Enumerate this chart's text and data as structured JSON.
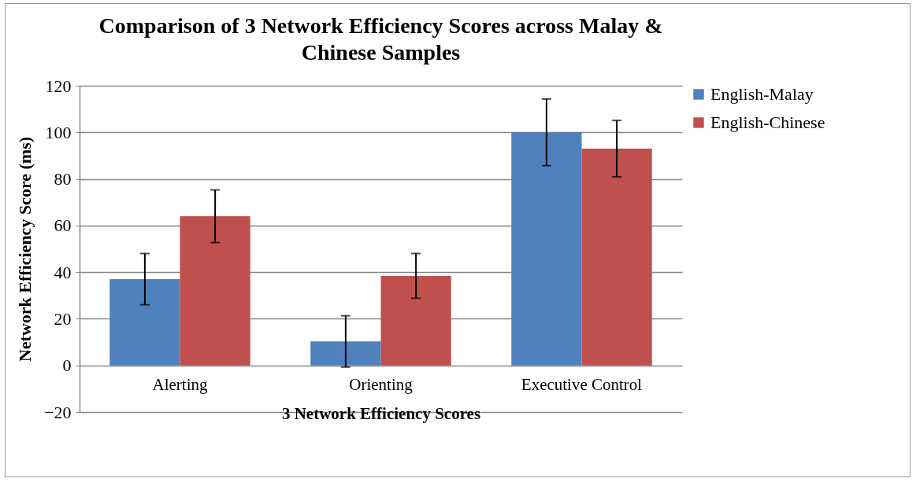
{
  "chart_data": {
    "type": "bar",
    "title": "Comparison of 3 Network Efficiency Scores across Malay & Chinese Samples",
    "xlabel": "3 Network Efficiency Scores",
    "ylabel": "Network Efficiency Score (ms)",
    "categories": [
      "Alerting",
      "Orienting",
      "Executive Control"
    ],
    "series": [
      {
        "name": "English-Malay",
        "color": "#4f81bd",
        "values": [
          37,
          10.3,
          100
        ],
        "errors": [
          11,
          11,
          14.3
        ]
      },
      {
        "name": "English-Chinese",
        "color": "#c0504d",
        "values": [
          64,
          38.4,
          93
        ],
        "errors": [
          11.3,
          9.6,
          12.1
        ]
      }
    ],
    "ylim": [
      -20,
      120
    ],
    "yticks": [
      -20,
      0,
      20,
      40,
      60,
      80,
      100,
      120
    ],
    "grid": "y",
    "legend": "right"
  }
}
